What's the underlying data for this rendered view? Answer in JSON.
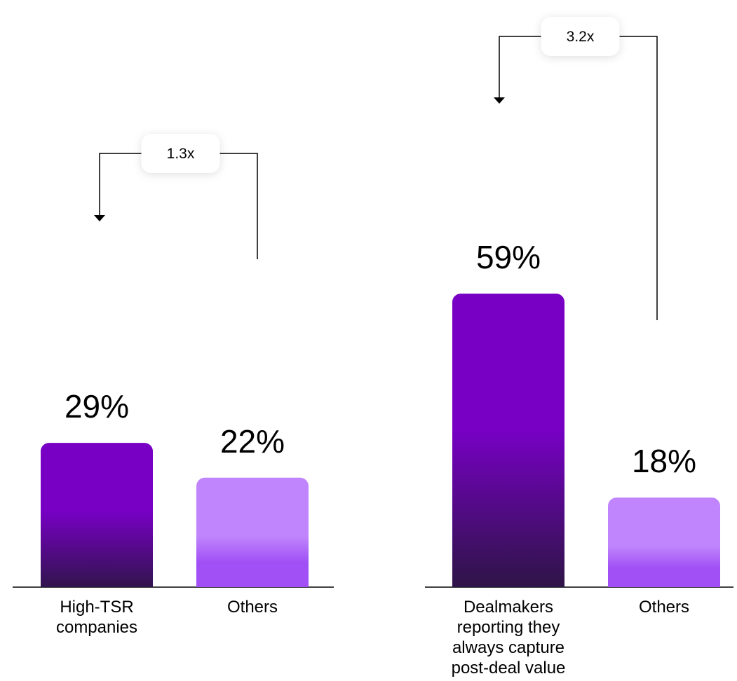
{
  "colors": {
    "primary_top": "#7700C4",
    "primary_bottom": "#2A1640",
    "secondary_top": "#C084FC",
    "secondary_bottom": "#A050F5"
  },
  "chart_data": [
    {
      "type": "bar",
      "categories": [
        [
          "High-TSR",
          "companies"
        ],
        [
          "Others"
        ]
      ],
      "values": [
        29,
        22
      ],
      "value_labels": [
        "29%",
        "22%"
      ],
      "unit": "%",
      "comparison": {
        "label": "1.3x"
      }
    },
    {
      "type": "bar",
      "categories": [
        [
          "Dealmakers",
          "reporting they",
          "always capture",
          "post-deal value"
        ],
        [
          "Others"
        ]
      ],
      "values": [
        59,
        18
      ],
      "value_labels": [
        "59%",
        "18%"
      ],
      "unit": "%",
      "comparison": {
        "label": "3.2x"
      }
    }
  ]
}
